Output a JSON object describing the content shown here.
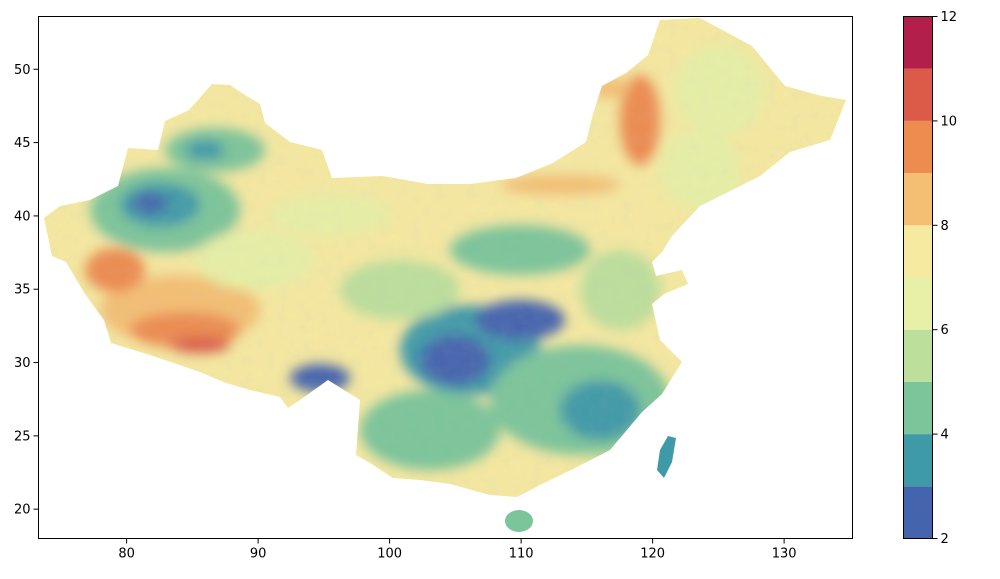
{
  "map": {
    "extent": {
      "lon": [
        73.3,
        135.2
      ],
      "lat": [
        18.0,
        53.6
      ]
    },
    "x_ticks": [
      80,
      90,
      100,
      110,
      120,
      130
    ],
    "y_ticks": [
      20,
      25,
      30,
      35,
      40,
      45,
      50
    ],
    "x_tick_labels": [
      "80",
      "90",
      "100",
      "110",
      "120",
      "130"
    ],
    "y_tick_labels": [
      "20",
      "25",
      "30",
      "35",
      "40",
      "45",
      "50"
    ]
  },
  "colorbar": {
    "range": [
      2,
      12
    ],
    "levels": [
      2,
      3,
      4,
      5,
      6,
      7,
      8,
      9,
      10,
      11,
      12
    ],
    "tick_values": [
      2,
      4,
      6,
      8,
      10,
      12
    ],
    "tick_labels": [
      "2",
      "4",
      "6",
      "8",
      "10",
      "12"
    ],
    "colors": [
      "#4464ad",
      "#3f9aa8",
      "#7cc59a",
      "#bcdf9b",
      "#e7f0a6",
      "#f6e9a0",
      "#f5bf73",
      "#ee8b4f",
      "#db5a48",
      "#b21f4a"
    ]
  }
}
